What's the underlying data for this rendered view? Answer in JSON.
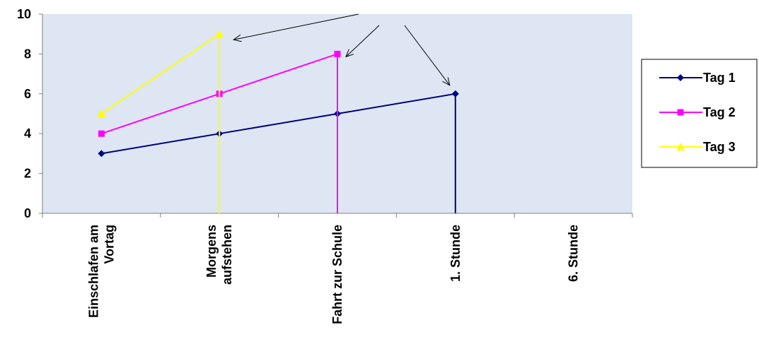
{
  "chart_data": {
    "type": "line",
    "categories": [
      [
        "Einschlafen am",
        "Vortag"
      ],
      [
        "Morgens",
        "aufstehen"
      ],
      [
        "Fahrt zur Schule"
      ],
      [
        "1. Stunde"
      ],
      [
        "6. Stunde"
      ]
    ],
    "ylim": [
      0,
      10
    ],
    "yticks": [
      "0",
      "2",
      "4",
      "6",
      "8",
      "10"
    ],
    "series": [
      {
        "name": "Tag 1",
        "values": [
          3,
          4,
          5,
          6,
          null
        ],
        "color": "#000080",
        "marker": "diamond",
        "drop_at": 3
      },
      {
        "name": "Tag 2",
        "values": [
          4,
          6,
          8,
          null,
          null
        ],
        "color": "#FF00FF",
        "marker": "square",
        "drop_at": 2
      },
      {
        "name": "Tag 3",
        "values": [
          5,
          9,
          null,
          null,
          null
        ],
        "color": "#FFFF00",
        "marker": "triangle",
        "drop_at": 1
      }
    ],
    "plot_background": "#DDE6F2",
    "legend_placement": "right",
    "grid": false
  }
}
